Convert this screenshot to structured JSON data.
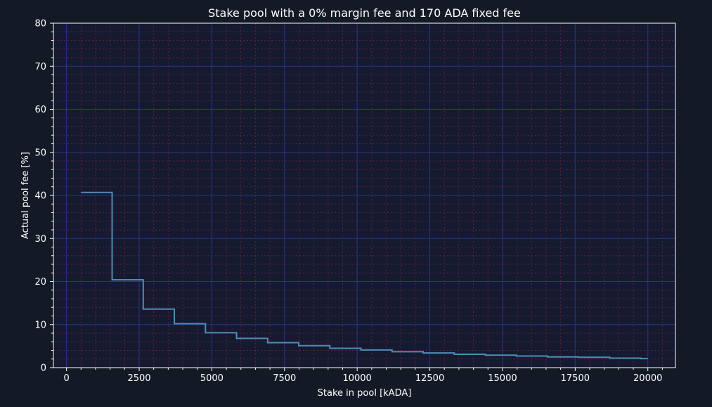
{
  "chart_data": {
    "type": "line",
    "title": "Stake pool with a 0% margin fee and 170 ADA fixed fee",
    "xlabel": "Stake in pool [kADA]",
    "ylabel": "Actual pool fee [%]",
    "xlim": [
      -450,
      20950
    ],
    "ylim": [
      0,
      80
    ],
    "xticks": [
      0,
      2500,
      5000,
      7500,
      10000,
      12500,
      15000,
      17500,
      20000
    ],
    "yticks": [
      0,
      10,
      20,
      30,
      40,
      50,
      60,
      70,
      80
    ],
    "grid": true,
    "legend": "none",
    "series": [
      {
        "step": "post",
        "x": [
          500,
          1570,
          2640,
          3710,
          4780,
          5850,
          6920,
          7990,
          9060,
          10130,
          11200,
          12270,
          13340,
          14410,
          15480,
          16550,
          17620,
          18690,
          19760,
          20000
        ],
        "y": [
          40.7,
          20.4,
          13.6,
          10.2,
          8.1,
          6.8,
          5.8,
          5.1,
          4.5,
          4.1,
          3.7,
          3.4,
          3.1,
          2.9,
          2.7,
          2.5,
          2.4,
          2.2,
          2.1,
          2.1
        ]
      }
    ]
  },
  "colors": {
    "background": "#141a25",
    "plot_area": "#161a30",
    "line": "#4f8cb6",
    "major_grid": "#2a3580",
    "minor_grid": "#5a2438",
    "text": "#ffffff"
  }
}
